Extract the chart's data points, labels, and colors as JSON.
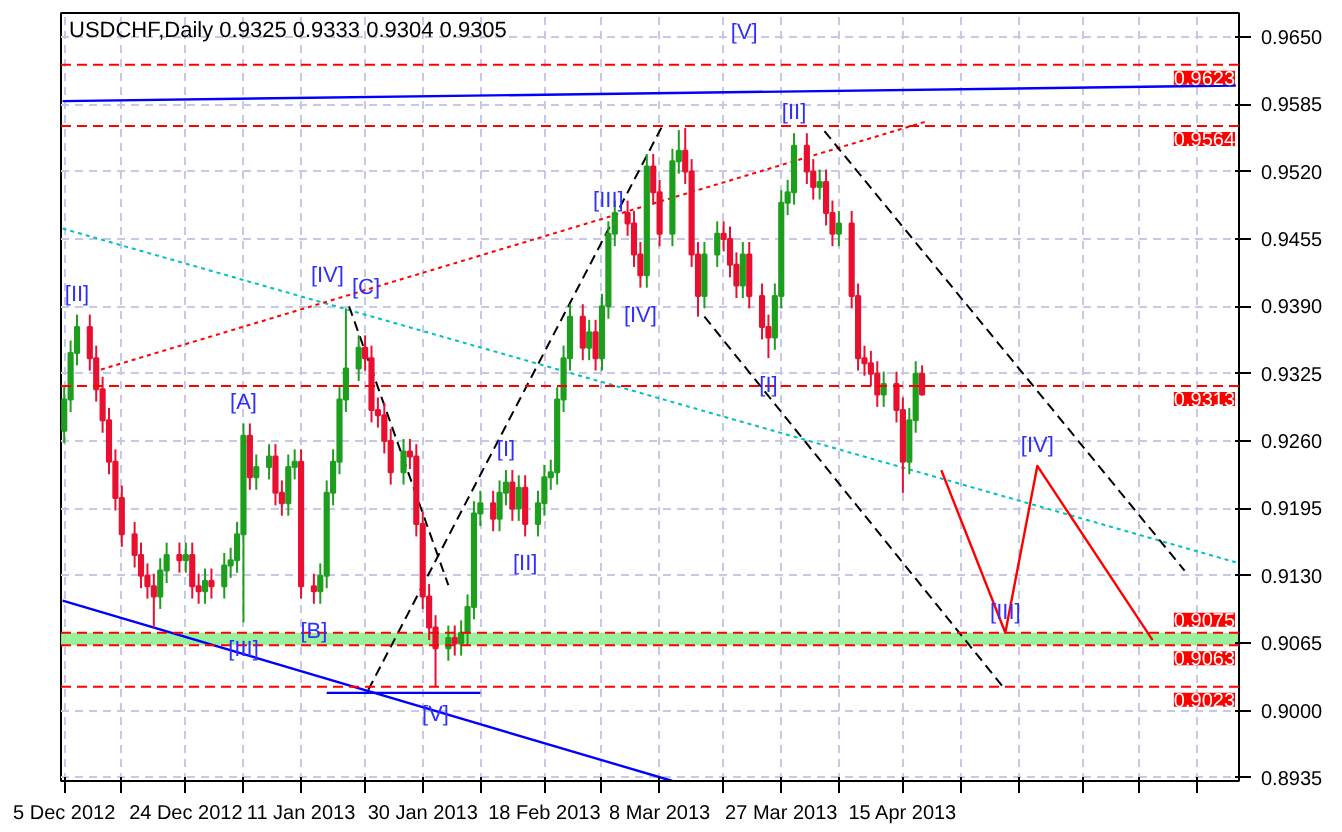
{
  "chart_data": {
    "type": "candlestick",
    "title": "USDCHF,Daily  0.9325 0.9333 0.9304 0.9305",
    "x": [
      "2012-12-05",
      "2012-12-06",
      "2012-12-07",
      "2012-12-09",
      "2012-12-10",
      "2012-12-11",
      "2012-12-12",
      "2012-12-13",
      "2012-12-14",
      "2012-12-16",
      "2012-12-17",
      "2012-12-18",
      "2012-12-19",
      "2012-12-20",
      "2012-12-21",
      "2012-12-23",
      "2012-12-24",
      "2012-12-25",
      "2012-12-26",
      "2012-12-27",
      "2012-12-28",
      "2012-12-30",
      "2012-12-31",
      "2013-01-01",
      "2013-01-02",
      "2013-01-03",
      "2013-01-04",
      "2013-01-06",
      "2013-01-07",
      "2013-01-08",
      "2013-01-09",
      "2013-01-10",
      "2013-01-11",
      "2013-01-13",
      "2013-01-14",
      "2013-01-15",
      "2013-01-16",
      "2013-01-17",
      "2013-01-18",
      "2013-01-20",
      "2013-01-21",
      "2013-01-22",
      "2013-01-23",
      "2013-01-24",
      "2013-01-25",
      "2013-01-27",
      "2013-01-28",
      "2013-01-29",
      "2013-01-30",
      "2013-01-31",
      "2013-02-01",
      "2013-02-03",
      "2013-02-04",
      "2013-02-05",
      "2013-02-06",
      "2013-02-07",
      "2013-02-08",
      "2013-02-10",
      "2013-02-11",
      "2013-02-12",
      "2013-02-13",
      "2013-02-14",
      "2013-02-15",
      "2013-02-17",
      "2013-02-18",
      "2013-02-19",
      "2013-02-20",
      "2013-02-21",
      "2013-02-22",
      "2013-02-24",
      "2013-02-25",
      "2013-02-26",
      "2013-02-27",
      "2013-02-28",
      "2013-03-01",
      "2013-03-03",
      "2013-03-04",
      "2013-03-05",
      "2013-03-06",
      "2013-03-07",
      "2013-03-08",
      "2013-03-10",
      "2013-03-11",
      "2013-03-12",
      "2013-03-13",
      "2013-03-14",
      "2013-03-15",
      "2013-03-17",
      "2013-03-18",
      "2013-03-19",
      "2013-03-20",
      "2013-03-21",
      "2013-03-22",
      "2013-03-24",
      "2013-03-25",
      "2013-03-26",
      "2013-03-27",
      "2013-03-28",
      "2013-03-29",
      "2013-03-31",
      "2013-04-01",
      "2013-04-02",
      "2013-04-03",
      "2013-04-04",
      "2013-04-05",
      "2013-04-07",
      "2013-04-08",
      "2013-04-09",
      "2013-04-10",
      "2013-04-11",
      "2013-04-12",
      "2013-04-14",
      "2013-04-15",
      "2013-04-16",
      "2013-04-17",
      "2013-04-18"
    ],
    "ohlc": [
      [
        0.927,
        0.9312,
        0.9258,
        0.93
      ],
      [
        0.93,
        0.9357,
        0.9288,
        0.9345
      ],
      [
        0.9345,
        0.9382,
        0.9333,
        0.937
      ],
      [
        0.937,
        0.9382,
        0.9328,
        0.934
      ],
      [
        0.934,
        0.9352,
        0.9298,
        0.931
      ],
      [
        0.931,
        0.9322,
        0.9268,
        0.928
      ],
      [
        0.928,
        0.9292,
        0.9228,
        0.924
      ],
      [
        0.924,
        0.9252,
        0.9193,
        0.9205
      ],
      [
        0.9205,
        0.9217,
        0.9158,
        0.917
      ],
      [
        0.917,
        0.9182,
        0.9138,
        0.915
      ],
      [
        0.915,
        0.9162,
        0.9118,
        0.913
      ],
      [
        0.913,
        0.9142,
        0.9108,
        0.912
      ],
      [
        0.912,
        0.9132,
        0.908,
        0.911
      ],
      [
        0.911,
        0.9147,
        0.9098,
        0.9135
      ],
      [
        0.9135,
        0.9162,
        0.9123,
        0.915
      ],
      [
        0.915,
        0.9162,
        0.9133,
        0.9145
      ],
      [
        0.9145,
        0.9162,
        0.9133,
        0.915
      ],
      [
        0.915,
        0.9162,
        0.9108,
        0.912
      ],
      [
        0.912,
        0.9132,
        0.9103,
        0.9115
      ],
      [
        0.9115,
        0.9137,
        0.9103,
        0.9125
      ],
      [
        0.9125,
        0.9137,
        0.9108,
        0.912
      ],
      [
        0.912,
        0.9152,
        0.9108,
        0.914
      ],
      [
        0.914,
        0.9157,
        0.9128,
        0.9145
      ],
      [
        0.9145,
        0.9182,
        0.9133,
        0.917
      ],
      [
        0.917,
        0.9277,
        0.9085,
        0.9265
      ],
      [
        0.9265,
        0.9277,
        0.9213,
        0.9225
      ],
      [
        0.9225,
        0.9247,
        0.9213,
        0.9235
      ],
      [
        0.9235,
        0.9257,
        0.9223,
        0.9245
      ],
      [
        0.9245,
        0.9257,
        0.9198,
        0.921
      ],
      [
        0.921,
        0.9222,
        0.9188,
        0.92
      ],
      [
        0.92,
        0.9247,
        0.9188,
        0.9235
      ],
      [
        0.9235,
        0.9252,
        0.9223,
        0.924
      ],
      [
        0.924,
        0.9252,
        0.9108,
        0.912
      ],
      [
        0.912,
        0.9132,
        0.9103,
        0.9115
      ],
      [
        0.9115,
        0.9142,
        0.9103,
        0.913
      ],
      [
        0.913,
        0.9222,
        0.9118,
        0.921
      ],
      [
        0.921,
        0.9252,
        0.9198,
        0.924
      ],
      [
        0.924,
        0.9312,
        0.9228,
        0.93
      ],
      [
        0.93,
        0.9388,
        0.9288,
        0.933
      ],
      [
        0.933,
        0.9362,
        0.9318,
        0.935
      ],
      [
        0.935,
        0.9362,
        0.9328,
        0.934
      ],
      [
        0.934,
        0.9352,
        0.9278,
        0.929
      ],
      [
        0.929,
        0.9302,
        0.9273,
        0.9285
      ],
      [
        0.9285,
        0.9297,
        0.9248,
        0.926
      ],
      [
        0.926,
        0.9272,
        0.9218,
        0.923
      ],
      [
        0.923,
        0.9262,
        0.9218,
        0.925
      ],
      [
        0.925,
        0.9262,
        0.9233,
        0.9245
      ],
      [
        0.9245,
        0.9257,
        0.9168,
        0.918
      ],
      [
        0.918,
        0.9192,
        0.9098,
        0.911
      ],
      [
        0.911,
        0.9122,
        0.9068,
        0.908
      ],
      [
        0.908,
        0.9092,
        0.9023,
        0.906
      ],
      [
        0.906,
        0.9082,
        0.9048,
        0.907
      ],
      [
        0.907,
        0.9082,
        0.9053,
        0.9065
      ],
      [
        0.9065,
        0.9087,
        0.9053,
        0.9075
      ],
      [
        0.9075,
        0.9112,
        0.9063,
        0.91
      ],
      [
        0.91,
        0.9202,
        0.9088,
        0.919
      ],
      [
        0.919,
        0.9212,
        0.9178,
        0.92
      ],
      [
        0.92,
        0.9212,
        0.9173,
        0.9185
      ],
      [
        0.9185,
        0.9222,
        0.9173,
        0.921
      ],
      [
        0.921,
        0.9232,
        0.9198,
        0.922
      ],
      [
        0.922,
        0.9232,
        0.9183,
        0.9195
      ],
      [
        0.9195,
        0.9227,
        0.9183,
        0.9215
      ],
      [
        0.9215,
        0.9227,
        0.9168,
        0.918
      ],
      [
        0.918,
        0.9212,
        0.9168,
        0.92
      ],
      [
        0.92,
        0.9237,
        0.9188,
        0.9225
      ],
      [
        0.9225,
        0.9242,
        0.9213,
        0.923
      ],
      [
        0.923,
        0.9312,
        0.9218,
        0.93
      ],
      [
        0.93,
        0.9352,
        0.9288,
        0.934
      ],
      [
        0.934,
        0.9392,
        0.9328,
        0.938
      ],
      [
        0.938,
        0.9392,
        0.9338,
        0.935
      ],
      [
        0.935,
        0.9377,
        0.9338,
        0.9365
      ],
      [
        0.9365,
        0.9377,
        0.9328,
        0.934
      ],
      [
        0.934,
        0.9402,
        0.9328,
        0.939
      ],
      [
        0.939,
        0.9472,
        0.9378,
        0.946
      ],
      [
        0.946,
        0.9492,
        0.9448,
        0.948
      ],
      [
        0.948,
        0.9492,
        0.9458,
        0.947
      ],
      [
        0.947,
        0.9482,
        0.9428,
        0.944
      ],
      [
        0.944,
        0.9452,
        0.9408,
        0.942
      ],
      [
        0.942,
        0.9537,
        0.9408,
        0.9525
      ],
      [
        0.9525,
        0.9537,
        0.9488,
        0.95
      ],
      [
        0.95,
        0.9512,
        0.9448,
        0.946
      ],
      [
        0.946,
        0.9542,
        0.9448,
        0.953
      ],
      [
        0.953,
        0.956,
        0.9518,
        0.954
      ],
      [
        0.954,
        0.9562,
        0.9508,
        0.952
      ],
      [
        0.952,
        0.9532,
        0.9428,
        0.944
      ],
      [
        0.944,
        0.9452,
        0.938,
        0.94
      ],
      [
        0.94,
        0.9452,
        0.9388,
        0.944
      ],
      [
        0.944,
        0.9472,
        0.9428,
        0.946
      ],
      [
        0.946,
        0.9472,
        0.9443,
        0.9455
      ],
      [
        0.9455,
        0.9467,
        0.9418,
        0.943
      ],
      [
        0.943,
        0.9442,
        0.9398,
        0.941
      ],
      [
        0.941,
        0.9452,
        0.9398,
        0.944
      ],
      [
        0.944,
        0.9452,
        0.9388,
        0.94
      ],
      [
        0.94,
        0.9412,
        0.9358,
        0.937
      ],
      [
        0.937,
        0.9382,
        0.934,
        0.936
      ],
      [
        0.936,
        0.9412,
        0.9348,
        0.94
      ],
      [
        0.94,
        0.9502,
        0.9388,
        0.949
      ],
      [
        0.949,
        0.9512,
        0.9478,
        0.95
      ],
      [
        0.95,
        0.9557,
        0.9488,
        0.9545
      ],
      [
        0.9545,
        0.9557,
        0.9508,
        0.952
      ],
      [
        0.952,
        0.9532,
        0.9493,
        0.9505
      ],
      [
        0.9505,
        0.9522,
        0.9493,
        0.951
      ],
      [
        0.951,
        0.9522,
        0.9468,
        0.948
      ],
      [
        0.948,
        0.9492,
        0.9448,
        0.946
      ],
      [
        0.946,
        0.9482,
        0.9448,
        0.947
      ],
      [
        0.947,
        0.9482,
        0.9388,
        0.94
      ],
      [
        0.94,
        0.9412,
        0.9328,
        0.934
      ],
      [
        0.934,
        0.9352,
        0.9323,
        0.9335
      ],
      [
        0.9335,
        0.9347,
        0.9313,
        0.9325
      ],
      [
        0.9325,
        0.9337,
        0.9293,
        0.9305
      ],
      [
        0.9305,
        0.9327,
        0.9293,
        0.9315
      ],
      [
        0.9315,
        0.9327,
        0.9278,
        0.929
      ],
      [
        0.929,
        0.9302,
        0.921,
        0.924
      ],
      [
        0.924,
        0.9292,
        0.9228,
        0.928
      ],
      [
        0.928,
        0.9337,
        0.9268,
        0.9325
      ],
      [
        0.9325,
        0.9333,
        0.9304,
        0.9305
      ]
    ],
    "colors": [
      "#1e9e1e",
      "#1e9e1e",
      "#1e9e1e",
      "#e81030",
      "#e81030",
      "#e81030",
      "#e81030",
      "#e81030",
      "#e81030",
      "#e81030",
      "#e81030",
      "#e81030",
      "#e81030",
      "#1e9e1e",
      "#1e9e1e",
      "#e81030",
      "#1e9e1e",
      "#e81030",
      "#e81030",
      "#1e9e1e",
      "#e81030",
      "#1e9e1e",
      "#1e9e1e",
      "#1e9e1e",
      "#1e9e1e",
      "#e81030",
      "#1e9e1e",
      "#1e9e1e",
      "#e81030",
      "#e81030",
      "#1e9e1e",
      "#1e9e1e",
      "#e81030",
      "#e81030",
      "#1e9e1e",
      "#1e9e1e",
      "#1e9e1e",
      "#1e9e1e",
      "#1e9e1e",
      "#1e9e1e",
      "#e81030",
      "#e81030",
      "#e81030",
      "#e81030",
      "#e81030",
      "#1e9e1e",
      "#e81030",
      "#e81030",
      "#e81030",
      "#e81030",
      "#e81030",
      "#1e9e1e",
      "#e81030",
      "#1e9e1e",
      "#1e9e1e",
      "#1e9e1e",
      "#1e9e1e",
      "#e81030",
      "#1e9e1e",
      "#1e9e1e",
      "#e81030",
      "#1e9e1e",
      "#e81030",
      "#1e9e1e",
      "#1e9e1e",
      "#1e9e1e",
      "#1e9e1e",
      "#1e9e1e",
      "#1e9e1e",
      "#e81030",
      "#1e9e1e",
      "#e81030",
      "#1e9e1e",
      "#1e9e1e",
      "#1e9e1e",
      "#e81030",
      "#e81030",
      "#e81030",
      "#1e9e1e",
      "#e81030",
      "#e81030",
      "#1e9e1e",
      "#1e9e1e",
      "#e81030",
      "#e81030",
      "#e81030",
      "#1e9e1e",
      "#1e9e1e",
      "#e81030",
      "#e81030",
      "#e81030",
      "#1e9e1e",
      "#e81030",
      "#e81030",
      "#e81030",
      "#1e9e1e",
      "#1e9e1e",
      "#1e9e1e",
      "#1e9e1e",
      "#e81030",
      "#e81030",
      "#1e9e1e",
      "#e81030",
      "#e81030",
      "#1e9e1e",
      "#e81030",
      "#e81030",
      "#e81030",
      "#e81030",
      "#e81030",
      "#1e9e1e",
      "#e81030",
      "#e81030",
      "#1e9e1e",
      "#1e9e1e",
      "#e81030"
    ],
    "series": [
      {
        "type": "line",
        "x": [
          "2012-12-04T18:00",
          "2013-06-06"
        ],
        "values": [
          0.9588,
          0.9603
        ],
        "color": "#0000ff",
        "line_style": "solid"
      },
      {
        "type": "line",
        "x": [
          "2012-12-04T18:00",
          "2013-03-10"
        ],
        "values": [
          0.9106,
          0.8932
        ],
        "color": "#0000ff",
        "line_style": "solid"
      },
      {
        "type": "line",
        "x": [
          "2013-01-15",
          "2013-02-08"
        ],
        "values": [
          0.9017,
          0.9017
        ],
        "color": "#0000ff",
        "line_style": "solid"
      },
      {
        "type": "line",
        "x": [
          "2012-12-04T18:00",
          "2013-06-06"
        ],
        "values": [
          0.9465,
          0.9143
        ],
        "color": "#00c0c0",
        "line_style": "dotted"
      },
      {
        "type": "line",
        "x": [
          "2012-12-10T18:00",
          "2013-04-19"
        ],
        "values": [
          0.9329,
          0.9569
        ],
        "color": "#ff0000",
        "line_style": "dotted"
      },
      {
        "type": "line",
        "x": [
          "2013-01-18T12:00",
          "2013-02-03"
        ],
        "values": [
          0.939,
          0.9121
        ],
        "color": "#000000",
        "line_style": "dashed"
      },
      {
        "type": "line",
        "x": [
          "2013-01-21T12:00",
          "2013-03-08T12:00"
        ],
        "values": [
          0.902,
          0.9565
        ],
        "color": "#000000",
        "line_style": "dashed"
      },
      {
        "type": "line",
        "x": [
          "2013-03-15",
          "2013-05-01"
        ],
        "values": [
          0.938,
          0.902
        ],
        "color": "#000000",
        "line_style": "dashed"
      },
      {
        "type": "line",
        "x": [
          "2013-04-02T18:00",
          "2013-05-29"
        ],
        "values": [
          0.9559,
          0.9135
        ],
        "color": "#000000",
        "line_style": "dashed"
      },
      {
        "type": "line",
        "x": [
          "2013-04-21",
          "2013-05-01",
          "2013-05-06",
          "2013-05-24"
        ],
        "values": [
          0.9232,
          0.9075,
          0.9236,
          0.9068
        ],
        "color": "#ff0000",
        "line_style": "solid"
      }
    ],
    "ref_lines": [
      {
        "axis": "y",
        "value": 0.9623,
        "label": "0.9623",
        "color": "#ff0000",
        "line_style": "dashed"
      },
      {
        "axis": "y",
        "value": 0.9564,
        "label": "0.9564",
        "color": "#ff0000",
        "line_style": "dashed"
      },
      {
        "axis": "y",
        "value": 0.9313,
        "label": "0.9313",
        "color": "#ff0000",
        "line_style": "dashed"
      },
      {
        "axis": "y",
        "value": 0.9075,
        "label": "0.9075",
        "color": "#ff0000",
        "line_style": "dashed"
      },
      {
        "axis": "y",
        "value": 0.9063,
        "label": "0.9063",
        "color": "#ff0000",
        "line_style": "dashed"
      },
      {
        "axis": "y",
        "value": 0.9023,
        "label": "0.9023",
        "color": "#ff0000",
        "line_style": "dashed"
      }
    ],
    "bands": [
      {
        "axis": "y",
        "from": 0.9063,
        "to": 0.9075,
        "color": "#90ee90"
      }
    ],
    "annotations": [
      {
        "text": "[II]",
        "x": "2012-12-07",
        "y": 0.9382
      },
      {
        "text": "[IV]",
        "x": "2013-01-18",
        "y": 0.9388
      },
      {
        "text": "[C]",
        "x": "2013-01-18",
        "y": 0.9388
      },
      {
        "text": "[A]",
        "x": "2013-01-02",
        "y": 0.9277
      },
      {
        "text": "[B]",
        "x": "2013-01-13",
        "y": 0.9103
      },
      {
        "text": "[III]",
        "x": "2013-01-02",
        "y": 0.9085
      },
      {
        "text": "[V]",
        "x": "2013-02-01",
        "y": 0.9023
      },
      {
        "text": "[I]",
        "x": "2013-02-12",
        "y": 0.9232
      },
      {
        "text": "[II]",
        "x": "2013-02-15",
        "y": 0.9168
      },
      {
        "text": "[III]",
        "x": "2013-02-28",
        "y": 0.9472
      },
      {
        "text": "[IV]",
        "x": "2013-03-05",
        "y": 0.9408
      },
      "[V]",
      {
        "text": "[II]",
        "x": "2013-03-29",
        "y": 0.9557
      },
      {
        "text": "[I]",
        "x": "2013-03-25",
        "y": 0.934
      },
      {
        "text": "[III]",
        "x": "2013-05-01",
        "y": 0.9075
      },
      {
        "text": "[IV]",
        "x": "2013-05-06",
        "y": 0.9236
      }
    ],
    "xlim": [
      "2012-12-04T12:00",
      "2013-06-06T12:00"
    ],
    "xticks": [
      {
        "value": "2012-12-05",
        "label": "5 Dec 2012"
      },
      {
        "value": "2012-12-14",
        "label": null
      },
      {
        "value": "2012-12-24",
        "label": "24 Dec 2012"
      },
      {
        "value": "2013-01-02",
        "label": null
      },
      {
        "value": "2013-01-11",
        "label": "11 Jan 2013"
      },
      {
        "value": "2013-01-21",
        "label": null
      },
      {
        "value": "2013-01-30",
        "label": "30 Jan 2013"
      },
      {
        "value": "2013-02-08",
        "label": null
      },
      {
        "value": "2013-02-18",
        "label": "18 Feb 2013"
      },
      {
        "value": "2013-02-27",
        "label": null
      },
      {
        "value": "2013-03-08",
        "label": "8 Mar 2013"
      },
      {
        "value": "2013-03-18",
        "label": null
      },
      {
        "value": "2013-03-27",
        "label": "27 Mar 2013"
      },
      {
        "value": "2013-04-05",
        "label": null
      },
      {
        "value": "2013-04-15",
        "label": "15 Apr 2013"
      },
      {
        "value": "2013-04-24",
        "label": null
      },
      {
        "value": "2013-05-03",
        "label": null
      },
      {
        "value": "2013-05-13",
        "label": null
      },
      {
        "value": "2013-05-22",
        "label": null
      },
      {
        "value": "2013-05-31",
        "label": null
      }
    ],
    "ylim": [
      0.8932,
      0.9673
    ],
    "yticks": [
      {
        "value": 0.8935,
        "label": "0.8935"
      },
      {
        "value": 0.9,
        "label": "0.9000"
      },
      {
        "value": 0.9065,
        "label": "0.9065"
      },
      {
        "value": 0.913,
        "label": "0.9130"
      },
      {
        "value": 0.9195,
        "label": "0.9195"
      },
      {
        "value": 0.926,
        "label": "0.9260"
      },
      {
        "value": 0.9325,
        "label": "0.9325"
      },
      {
        "value": 0.939,
        "label": "0.9390"
      },
      {
        "value": 0.9455,
        "label": "0.9455"
      },
      {
        "value": 0.952,
        "label": "0.9520"
      },
      {
        "value": 0.9585,
        "label": "0.9585"
      },
      {
        "value": 0.965,
        "label": "0.9650"
      }
    ],
    "grid": true
  }
}
